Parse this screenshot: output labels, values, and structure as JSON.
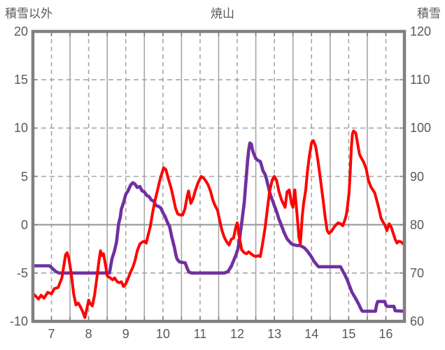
{
  "header": {
    "left_axis_title": "積雪以外",
    "title": "焼山",
    "right_axis_title": "積雪"
  },
  "colors": {
    "temp_line": "#ff0000",
    "snow_line": "#7030a0",
    "grid": "#a6a6a6",
    "zero_line": "#999999",
    "frame": "#808080",
    "text": "#595959"
  },
  "chart_data": {
    "type": "line",
    "title": "焼山",
    "legend_position": "none",
    "grid": {
      "vertical_solid_days": [
        8,
        9,
        10,
        11,
        12,
        13,
        14,
        15,
        16
      ],
      "vertical_dashed_half_days": [
        7.5,
        8.5,
        9.5,
        10.5,
        11.5,
        12.5,
        13.5,
        14.5,
        15.5,
        16.5
      ],
      "horizontal_dashed": [
        15,
        10,
        5,
        -5
      ],
      "horizontal_solid": [
        0
      ]
    },
    "x_axis": {
      "labels": [
        "7",
        "8",
        "9",
        "10",
        "11",
        "12",
        "13",
        "14",
        "15",
        "16"
      ],
      "min": 7,
      "max": 17
    },
    "left_axis": {
      "title": "積雪以外",
      "ticks": [
        "20",
        "15",
        "10",
        "5",
        "0",
        "-5",
        "-10"
      ],
      "tick_values": [
        20,
        15,
        10,
        5,
        0,
        -5,
        -10
      ],
      "min": -10,
      "max": 20
    },
    "right_axis": {
      "title": "積雪",
      "ticks": [
        "120",
        "110",
        "100",
        "90",
        "80",
        "70",
        "60"
      ],
      "tick_values": [
        120,
        110,
        100,
        90,
        80,
        70,
        60
      ],
      "min": 60,
      "max": 120
    },
    "series": [
      {
        "name": "積雪以外",
        "axis": "left",
        "color": "#ff0000",
        "points": [
          [
            7.0,
            -7.1
          ],
          [
            7.08,
            -7.4
          ],
          [
            7.15,
            -7.7
          ],
          [
            7.22,
            -7.3
          ],
          [
            7.3,
            -7.6
          ],
          [
            7.4,
            -7.0
          ],
          [
            7.5,
            -7.15
          ],
          [
            7.58,
            -6.6
          ],
          [
            7.68,
            -6.5
          ],
          [
            7.78,
            -5.5
          ],
          [
            7.83,
            -4.3
          ],
          [
            7.88,
            -3.1
          ],
          [
            7.92,
            -2.9
          ],
          [
            7.97,
            -3.5
          ],
          [
            8.03,
            -5.0
          ],
          [
            8.1,
            -7.2
          ],
          [
            8.16,
            -8.3
          ],
          [
            8.22,
            -8.1
          ],
          [
            8.28,
            -8.5
          ],
          [
            8.34,
            -9.0
          ],
          [
            8.4,
            -9.6
          ],
          [
            8.46,
            -8.6
          ],
          [
            8.5,
            -7.8
          ],
          [
            8.55,
            -8.2
          ],
          [
            8.6,
            -8.4
          ],
          [
            8.66,
            -7.3
          ],
          [
            8.72,
            -5.6
          ],
          [
            8.78,
            -3.7
          ],
          [
            8.82,
            -2.7
          ],
          [
            8.86,
            -3.2
          ],
          [
            8.9,
            -3.0
          ],
          [
            8.96,
            -4.3
          ],
          [
            9.0,
            -5.3
          ],
          [
            9.08,
            -5.5
          ],
          [
            9.15,
            -5.7
          ],
          [
            9.2,
            -5.5
          ],
          [
            9.27,
            -5.9
          ],
          [
            9.33,
            -6.0
          ],
          [
            9.38,
            -5.9
          ],
          [
            9.44,
            -6.4
          ],
          [
            9.5,
            -6.1
          ],
          [
            9.56,
            -5.6
          ],
          [
            9.63,
            -4.9
          ],
          [
            9.7,
            -4.3
          ],
          [
            9.75,
            -3.7
          ],
          [
            9.81,
            -2.7
          ],
          [
            9.88,
            -2.0
          ],
          [
            9.94,
            -1.8
          ],
          [
            10.0,
            -1.7
          ],
          [
            10.05,
            -1.9
          ],
          [
            10.1,
            -1.1
          ],
          [
            10.16,
            -0.2
          ],
          [
            10.22,
            1.2
          ],
          [
            10.28,
            2.4
          ],
          [
            10.35,
            3.5
          ],
          [
            10.41,
            4.5
          ],
          [
            10.47,
            5.3
          ],
          [
            10.52,
            5.9
          ],
          [
            10.58,
            5.7
          ],
          [
            10.65,
            4.7
          ],
          [
            10.72,
            3.8
          ],
          [
            10.78,
            2.8
          ],
          [
            10.84,
            1.7
          ],
          [
            10.9,
            1.1
          ],
          [
            10.97,
            1.0
          ],
          [
            11.03,
            1.0
          ],
          [
            11.09,
            1.6
          ],
          [
            11.15,
            2.9
          ],
          [
            11.19,
            3.5
          ],
          [
            11.25,
            2.2
          ],
          [
            11.31,
            2.7
          ],
          [
            11.37,
            3.5
          ],
          [
            11.44,
            4.3
          ],
          [
            11.53,
            5.0
          ],
          [
            11.6,
            4.8
          ],
          [
            11.66,
            4.5
          ],
          [
            11.72,
            4.1
          ],
          [
            11.78,
            3.5
          ],
          [
            11.84,
            2.6
          ],
          [
            11.9,
            2.0
          ],
          [
            11.97,
            1.5
          ],
          [
            12.03,
            0.4
          ],
          [
            12.09,
            -0.6
          ],
          [
            12.15,
            -1.3
          ],
          [
            12.22,
            -1.8
          ],
          [
            12.28,
            -2.1
          ],
          [
            12.34,
            -1.5
          ],
          [
            12.4,
            -1.4
          ],
          [
            12.46,
            -0.3
          ],
          [
            12.5,
            0.2
          ],
          [
            12.56,
            -1.3
          ],
          [
            12.62,
            -2.6
          ],
          [
            12.69,
            -2.9
          ],
          [
            12.75,
            -3.0
          ],
          [
            12.81,
            -2.8
          ],
          [
            12.87,
            -3.0
          ],
          [
            12.94,
            -3.2
          ],
          [
            13.0,
            -3.3
          ],
          [
            13.06,
            -3.2
          ],
          [
            13.12,
            -3.3
          ],
          [
            13.18,
            -2.0
          ],
          [
            13.25,
            -0.3
          ],
          [
            13.31,
            1.6
          ],
          [
            13.37,
            3.4
          ],
          [
            13.44,
            4.6
          ],
          [
            13.5,
            5.0
          ],
          [
            13.56,
            4.6
          ],
          [
            13.62,
            3.5
          ],
          [
            13.69,
            2.6
          ],
          [
            13.75,
            2.1
          ],
          [
            13.79,
            1.8
          ],
          [
            13.84,
            3.4
          ],
          [
            13.9,
            3.6
          ],
          [
            13.96,
            2.2
          ],
          [
            14.0,
            1.8
          ],
          [
            14.05,
            3.6
          ],
          [
            14.12,
            0.6
          ],
          [
            14.16,
            -1.3
          ],
          [
            14.2,
            -2.0
          ],
          [
            14.25,
            0.9
          ],
          [
            14.29,
            2.3
          ],
          [
            14.34,
            3.5
          ],
          [
            14.39,
            5.5
          ],
          [
            14.44,
            7.1
          ],
          [
            14.5,
            8.5
          ],
          [
            14.55,
            8.7
          ],
          [
            14.61,
            8.1
          ],
          [
            14.67,
            6.7
          ],
          [
            14.74,
            4.7
          ],
          [
            14.81,
            2.6
          ],
          [
            14.87,
            0.7
          ],
          [
            14.92,
            -0.6
          ],
          [
            14.97,
            -0.9
          ],
          [
            15.03,
            -0.7
          ],
          [
            15.1,
            -0.3
          ],
          [
            15.16,
            0.0
          ],
          [
            15.22,
            0.2
          ],
          [
            15.28,
            0.1
          ],
          [
            15.34,
            -0.1
          ],
          [
            15.4,
            0.5
          ],
          [
            15.44,
            1.1
          ],
          [
            15.47,
            2.0
          ],
          [
            15.51,
            3.3
          ],
          [
            15.54,
            5.4
          ],
          [
            15.57,
            7.9
          ],
          [
            15.6,
            9.4
          ],
          [
            15.63,
            9.7
          ],
          [
            15.69,
            9.5
          ],
          [
            15.74,
            8.4
          ],
          [
            15.79,
            7.3
          ],
          [
            15.84,
            6.9
          ],
          [
            15.9,
            6.5
          ],
          [
            15.97,
            5.8
          ],
          [
            16.03,
            4.6
          ],
          [
            16.1,
            3.9
          ],
          [
            16.15,
            3.6
          ],
          [
            16.2,
            3.3
          ],
          [
            16.25,
            2.6
          ],
          [
            16.31,
            1.7
          ],
          [
            16.37,
            0.7
          ],
          [
            16.42,
            0.3
          ],
          [
            16.47,
            0.0
          ],
          [
            16.53,
            -0.6
          ],
          [
            16.59,
            0.1
          ],
          [
            16.65,
            -0.3
          ],
          [
            16.7,
            -0.9
          ],
          [
            16.75,
            -1.5
          ],
          [
            16.8,
            -1.9
          ],
          [
            16.85,
            -1.7
          ],
          [
            16.92,
            -1.8
          ],
          [
            16.97,
            -2.0
          ]
        ]
      },
      {
        "name": "積雪",
        "axis": "right",
        "color": "#7030a0",
        "points": [
          [
            7.0,
            71.5
          ],
          [
            7.45,
            71.5
          ],
          [
            7.52,
            71.0
          ],
          [
            7.62,
            70.3
          ],
          [
            7.7,
            70.0
          ],
          [
            9.06,
            70.0
          ],
          [
            9.13,
            73.0
          ],
          [
            9.19,
            74.4
          ],
          [
            9.25,
            76.4
          ],
          [
            9.28,
            78.4
          ],
          [
            9.31,
            80.3
          ],
          [
            9.35,
            81.5
          ],
          [
            9.38,
            83.2
          ],
          [
            9.44,
            84.6
          ],
          [
            9.5,
            86.3
          ],
          [
            9.56,
            87.0
          ],
          [
            9.63,
            88.2
          ],
          [
            9.69,
            88.7
          ],
          [
            9.75,
            88.4
          ],
          [
            9.81,
            87.7
          ],
          [
            9.88,
            87.9
          ],
          [
            9.94,
            87.0
          ],
          [
            10.0,
            86.8
          ],
          [
            10.06,
            86.1
          ],
          [
            10.13,
            85.8
          ],
          [
            10.19,
            85.1
          ],
          [
            10.25,
            84.9
          ],
          [
            10.31,
            84.0
          ],
          [
            10.38,
            83.8
          ],
          [
            10.44,
            83.5
          ],
          [
            10.5,
            82.5
          ],
          [
            10.56,
            81.7
          ],
          [
            10.62,
            80.5
          ],
          [
            10.68,
            79.6
          ],
          [
            10.74,
            77.4
          ],
          [
            10.81,
            75.3
          ],
          [
            10.84,
            74.1
          ],
          [
            10.87,
            73.1
          ],
          [
            10.9,
            72.7
          ],
          [
            10.95,
            72.3
          ],
          [
            11.1,
            72.1
          ],
          [
            11.15,
            71.0
          ],
          [
            11.2,
            70.2
          ],
          [
            11.27,
            70.0
          ],
          [
            12.15,
            70.0
          ],
          [
            12.25,
            70.3
          ],
          [
            12.34,
            71.4
          ],
          [
            12.4,
            72.5
          ],
          [
            12.46,
            73.6
          ],
          [
            12.52,
            75.0
          ],
          [
            12.58,
            78.0
          ],
          [
            12.63,
            81.0
          ],
          [
            12.69,
            84.6
          ],
          [
            12.72,
            87.5
          ],
          [
            12.75,
            90.4
          ],
          [
            12.78,
            93.3
          ],
          [
            12.81,
            95.5
          ],
          [
            12.84,
            96.9
          ],
          [
            12.88,
            96.7
          ],
          [
            12.91,
            95.5
          ],
          [
            12.94,
            94.8
          ],
          [
            13.0,
            93.7
          ],
          [
            13.06,
            93.3
          ],
          [
            13.12,
            93.1
          ],
          [
            13.16,
            92.1
          ],
          [
            13.19,
            91.2
          ],
          [
            13.25,
            90.4
          ],
          [
            13.28,
            89.7
          ],
          [
            13.31,
            88.7
          ],
          [
            13.34,
            87.8
          ],
          [
            13.37,
            86.8
          ],
          [
            13.4,
            86.1
          ],
          [
            13.43,
            85.4
          ],
          [
            13.47,
            84.6
          ],
          [
            13.5,
            83.9
          ],
          [
            13.53,
            83.4
          ],
          [
            13.56,
            82.7
          ],
          [
            13.59,
            82.0
          ],
          [
            13.62,
            81.2
          ],
          [
            13.66,
            80.5
          ],
          [
            13.69,
            79.8
          ],
          [
            13.72,
            79.3
          ],
          [
            13.75,
            78.6
          ],
          [
            13.78,
            78.1
          ],
          [
            13.81,
            77.6
          ],
          [
            13.84,
            77.1
          ],
          [
            13.87,
            76.8
          ],
          [
            13.91,
            76.5
          ],
          [
            13.94,
            76.2
          ],
          [
            13.97,
            76.0
          ],
          [
            14.0,
            75.9
          ],
          [
            14.1,
            75.7
          ],
          [
            14.19,
            75.7
          ],
          [
            14.31,
            75.2
          ],
          [
            14.38,
            74.6
          ],
          [
            14.44,
            74.0
          ],
          [
            14.5,
            73.3
          ],
          [
            14.56,
            72.5
          ],
          [
            14.63,
            71.8
          ],
          [
            14.69,
            71.3
          ],
          [
            15.28,
            71.3
          ],
          [
            15.34,
            70.4
          ],
          [
            15.4,
            69.6
          ],
          [
            15.47,
            68.4
          ],
          [
            15.53,
            67.2
          ],
          [
            15.59,
            66.0
          ],
          [
            15.66,
            65.1
          ],
          [
            15.72,
            64.3
          ],
          [
            15.78,
            63.4
          ],
          [
            15.84,
            62.4
          ],
          [
            15.87,
            62.1
          ],
          [
            16.22,
            62.1
          ],
          [
            16.25,
            63.4
          ],
          [
            16.28,
            64.1
          ],
          [
            16.47,
            64.1
          ],
          [
            16.5,
            63.4
          ],
          [
            16.53,
            63.1
          ],
          [
            16.72,
            63.1
          ],
          [
            16.75,
            62.2
          ],
          [
            16.97,
            62.1
          ]
        ]
      }
    ]
  }
}
